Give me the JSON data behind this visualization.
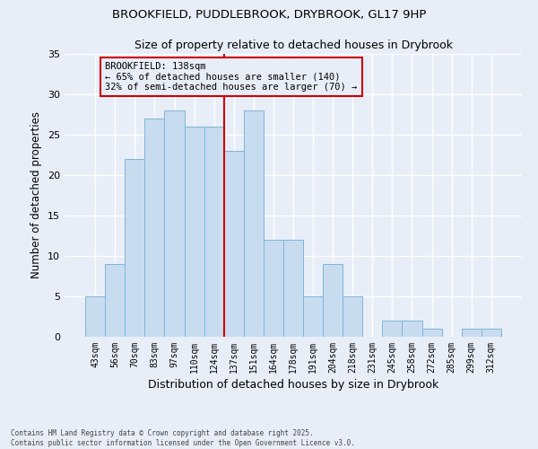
{
  "title": "BROOKFIELD, PUDDLEBROOK, DRYBROOK, GL17 9HP",
  "subtitle": "Size of property relative to detached houses in Drybrook",
  "xlabel": "Distribution of detached houses by size in Drybrook",
  "ylabel": "Number of detached properties",
  "bin_labels": [
    "43sqm",
    "56sqm",
    "70sqm",
    "83sqm",
    "97sqm",
    "110sqm",
    "124sqm",
    "137sqm",
    "151sqm",
    "164sqm",
    "178sqm",
    "191sqm",
    "204sqm",
    "218sqm",
    "231sqm",
    "245sqm",
    "258sqm",
    "272sqm",
    "285sqm",
    "299sqm",
    "312sqm"
  ],
  "bar_values": [
    5,
    9,
    22,
    27,
    28,
    26,
    26,
    23,
    28,
    12,
    12,
    5,
    9,
    5,
    0,
    2,
    2,
    1,
    0,
    1,
    1
  ],
  "bar_color": "#c8dcf0",
  "bar_edge_color": "#7fb4d8",
  "vline_color": "#cc0000",
  "annotation_text": "BROOKFIELD: 138sqm\n← 65% of detached houses are smaller (140)\n32% of semi-detached houses are larger (70) →",
  "annotation_box_color": "#cc0000",
  "ylim": [
    0,
    35
  ],
  "yticks": [
    0,
    5,
    10,
    15,
    20,
    25,
    30,
    35
  ],
  "footnote": "Contains HM Land Registry data © Crown copyright and database right 2025.\nContains public sector information licensed under the Open Government Licence v3.0.",
  "bg_color": "#e8eef8",
  "grid_color": "#ffffff"
}
